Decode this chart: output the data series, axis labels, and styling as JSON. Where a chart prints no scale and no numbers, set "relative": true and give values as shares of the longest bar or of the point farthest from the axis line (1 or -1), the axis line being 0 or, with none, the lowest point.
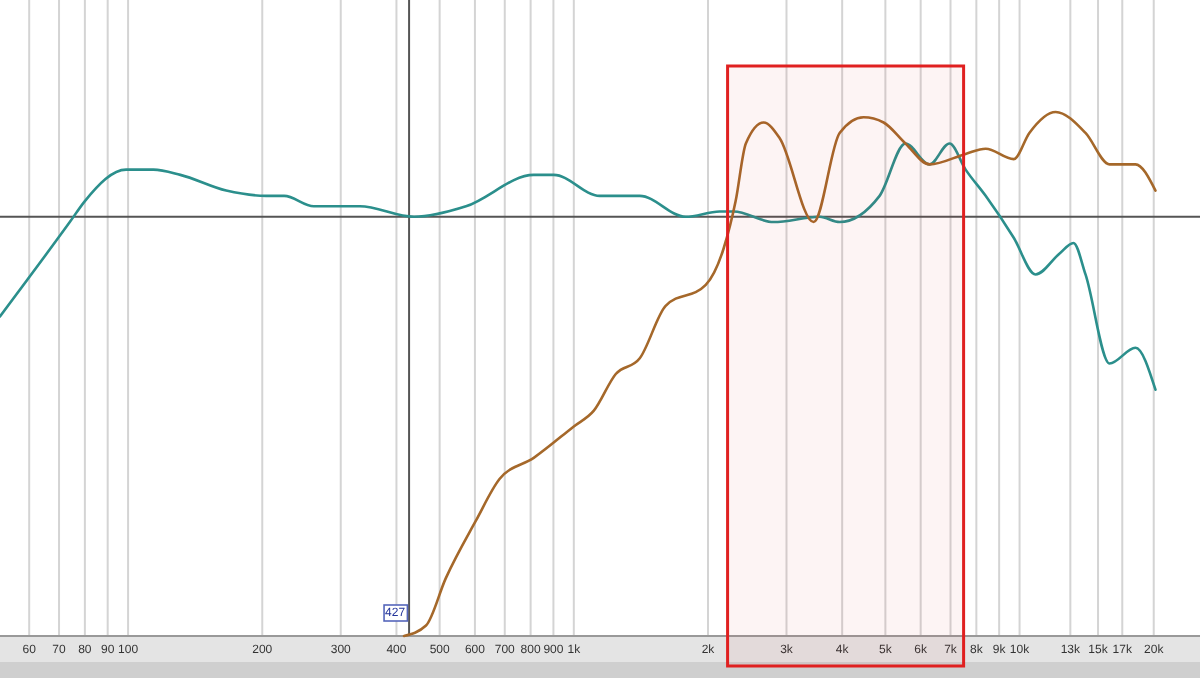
{
  "chart_data": {
    "type": "line",
    "relative": true,
    "log": "x",
    "grid": "x",
    "tick_labels": "x",
    "xlim": [
      51.6,
      25400
    ],
    "xticks": [
      60,
      70,
      80,
      90,
      100,
      200,
      300,
      400,
      500,
      600,
      700,
      800,
      900,
      {
        "value": 1000,
        "label": "1k"
      },
      {
        "value": 2000,
        "label": "2k"
      },
      {
        "value": 3000,
        "label": "3k"
      },
      {
        "value": 4000,
        "label": "4k"
      },
      {
        "value": 5000,
        "label": "5k"
      },
      {
        "value": 6000,
        "label": "6k"
      },
      {
        "value": 7000,
        "label": "7k"
      },
      {
        "value": 8000,
        "label": "8k"
      },
      {
        "value": 9000,
        "label": "9k"
      },
      {
        "value": 10000,
        "label": "10k"
      },
      {
        "value": 13000,
        "label": "13k"
      },
      {
        "value": 15000,
        "label": "15k"
      },
      {
        "value": 17000,
        "label": "17k"
      },
      {
        "value": 20000,
        "label": "20k"
      }
    ],
    "series": [
      {
        "color": "#2b8f8c",
        "x": [
          51.6,
          74,
          80,
          99,
          114,
          131,
          166,
          204,
          224,
          261,
          331,
          438,
          573,
          813,
          902,
          1143,
          1406,
          1782,
          2124,
          2284,
          2806,
          3562,
          3948,
          4853,
          5546,
          6281,
          6966,
          7568,
          8393,
          9704,
          10860,
          12300,
          13210,
          14060,
          15920,
          18200,
          20180
        ],
        "values": [
          0.61,
          0.79,
          0.83,
          0.89,
          0.89,
          0.88,
          0.85,
          0.84,
          0.84,
          0.82,
          0.82,
          0.8,
          0.82,
          0.88,
          0.88,
          0.84,
          0.84,
          0.8,
          0.81,
          0.81,
          0.79,
          0.8,
          0.79,
          0.84,
          0.94,
          0.9,
          0.94,
          0.89,
          0.84,
          0.76,
          0.69,
          0.73,
          0.75,
          0.69,
          0.52,
          0.55,
          0.47
        ]
      },
      {
        "color": "#a5682a",
        "x": [
          416,
          466,
          516,
          603,
          682,
          813,
          1000,
          1109,
          1242,
          1406,
          1607,
          1977,
          2169,
          2307,
          2432,
          2667,
          2897,
          3452,
          3948,
          4467,
          4955,
          5546,
          6281,
          7568,
          8393,
          9704,
          10520,
          12050,
          14060,
          15920,
          18200,
          20180
        ],
        "values": [
          0,
          0.02,
          0.11,
          0.22,
          0.3,
          0.34,
          0.4,
          0.43,
          0.5,
          0.53,
          0.63,
          0.67,
          0.74,
          0.83,
          0.94,
          0.98,
          0.95,
          0.79,
          0.96,
          0.99,
          0.98,
          0.94,
          0.9,
          0.92,
          0.93,
          0.91,
          0.96,
          1,
          0.96,
          0.9,
          0.9,
          0.85
        ]
      }
    ],
    "ref_lines": [
      {
        "axis": "x",
        "value": 427,
        "label": "427",
        "color": "#555555"
      },
      {
        "axis": "y",
        "value": 0.8,
        "color": "#555555"
      }
    ],
    "bands": [
      {
        "axis": "x",
        "from": 2213,
        "to": 7490,
        "color": "#e02020"
      }
    ]
  }
}
